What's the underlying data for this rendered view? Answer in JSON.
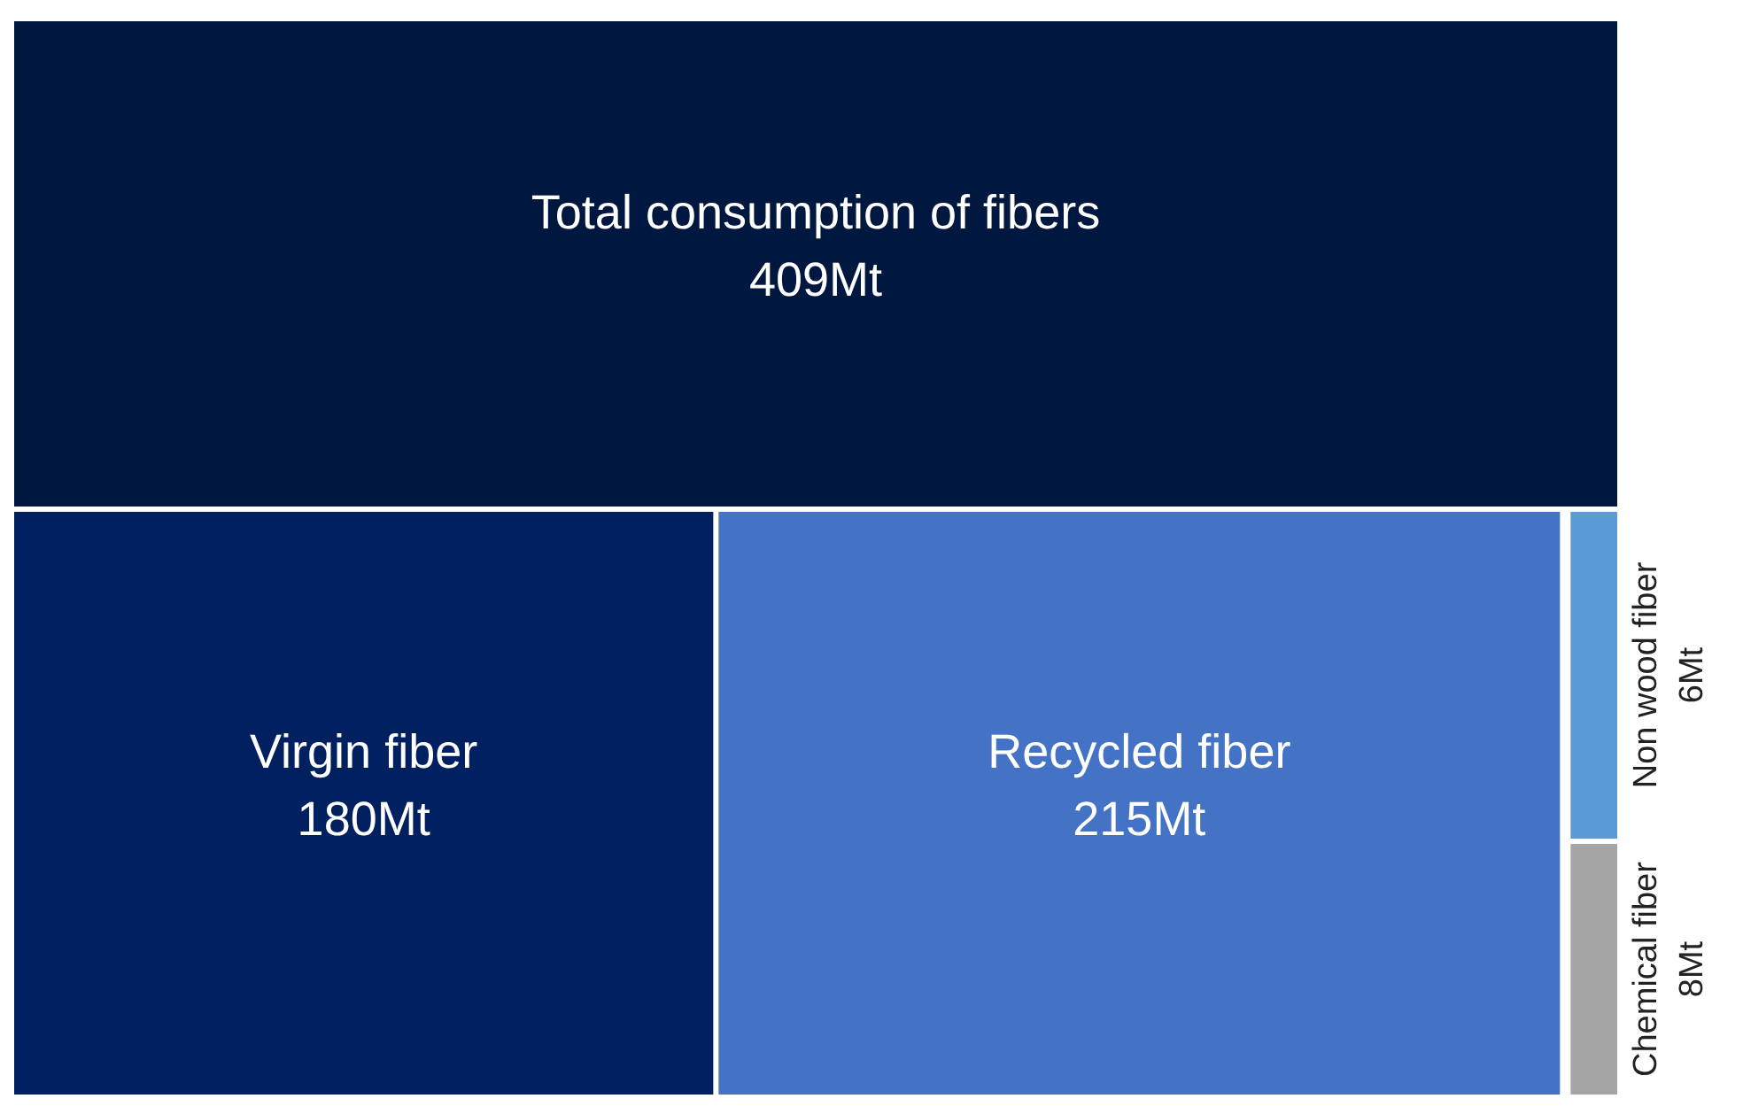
{
  "chart_data": {
    "type": "other",
    "categories": [
      "Total consumption of fibers",
      "Virgin fiber",
      "Recycled fiber",
      "Non wood fiber",
      "Chemical fiber"
    ],
    "values": [
      409,
      180,
      215,
      6,
      8
    ],
    "value_labels": [
      "409Mt",
      "180Mt",
      "215Mt",
      "6Mt",
      "8Mt"
    ],
    "colors": [
      "#001740",
      "#002060",
      "#4472c4",
      "#5b9bd5",
      "#a5a5a5"
    ]
  }
}
